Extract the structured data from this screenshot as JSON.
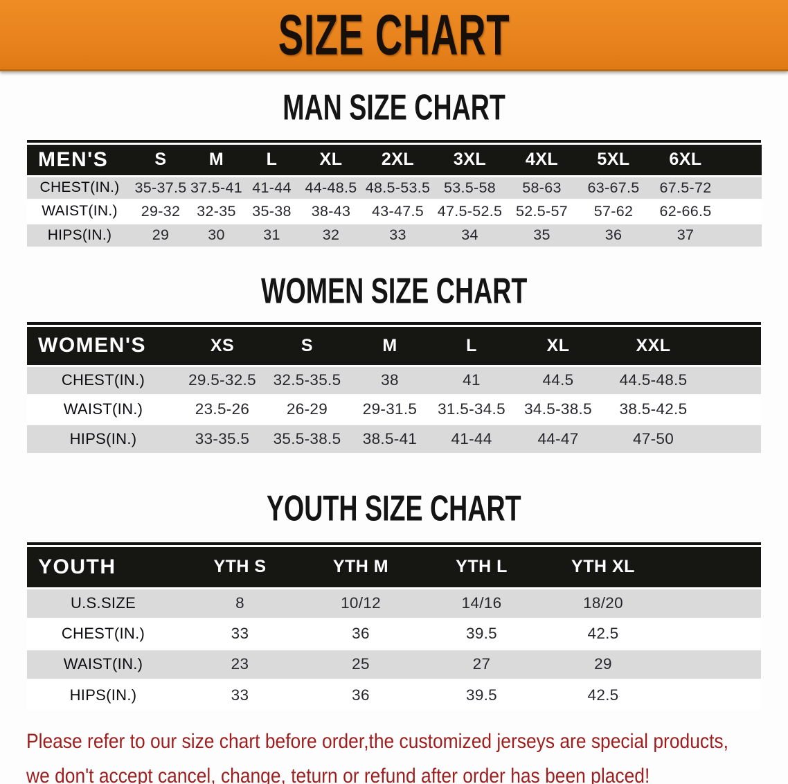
{
  "banner": {
    "title": "SIZE CHART",
    "bg_color": "#e8831d",
    "text_color": "#17100a"
  },
  "sections": [
    {
      "heading": "MAN SIZE CHART",
      "table": {
        "label": "MEN'S",
        "columns": [
          "S",
          "M",
          "L",
          "XL",
          "2XL",
          "3XL",
          "4XL",
          "5XL",
          "6XL"
        ],
        "rows": [
          {
            "label": "CHEST(IN.)",
            "values": [
              "35-37.5",
              "37.5-41",
              "41-44",
              "44-48.5",
              "48.5-53.5",
              "53.5-58",
              "58-63",
              "63-67.5",
              "67.5-72"
            ]
          },
          {
            "label": "WAIST(IN.)",
            "values": [
              "29-32",
              "32-35",
              "35-38",
              "38-43",
              "43-47.5",
              "47.5-52.5",
              "52.5-57",
              "57-62",
              "62-66.5"
            ]
          },
          {
            "label": "HIPS(IN.)",
            "values": [
              "29",
              "30",
              "31",
              "32",
              "33",
              "34",
              "35",
              "36",
              "37"
            ]
          }
        ]
      }
    },
    {
      "heading": "WOMEN SIZE CHART",
      "table": {
        "label": "WOMEN'S",
        "columns": [
          "XS",
          "S",
          "M",
          "L",
          "XL",
          "XXL"
        ],
        "rows": [
          {
            "label": "CHEST(IN.)",
            "values": [
              "29.5-32.5",
              "32.5-35.5",
              "38",
              "41",
              "44.5",
              "44.5-48.5"
            ]
          },
          {
            "label": "WAIST(IN.)",
            "values": [
              "23.5-26",
              "26-29",
              "29-31.5",
              "31.5-34.5",
              "34.5-38.5",
              "38.5-42.5"
            ]
          },
          {
            "label": "HIPS(IN.)",
            "values": [
              "33-35.5",
              "35.5-38.5",
              "38.5-41",
              "41-44",
              "44-47",
              "47-50"
            ]
          }
        ]
      }
    },
    {
      "heading": "YOUTH SIZE CHART",
      "table": {
        "label": "YOUTH",
        "columns": [
          "YTH S",
          "YTH M",
          "YTH L",
          "YTH XL"
        ],
        "rows": [
          {
            "label": "U.S.SIZE",
            "values": [
              "8",
              "10/12",
              "14/16",
              "18/20"
            ]
          },
          {
            "label": "CHEST(IN.)",
            "values": [
              "33",
              "36",
              "39.5",
              "42.5"
            ]
          },
          {
            "label": "WAIST(IN.)",
            "values": [
              "23",
              "25",
              "27",
              "29"
            ]
          },
          {
            "label": "HIPS(IN.)",
            "values": [
              "33",
              "36",
              "39.5",
              "42.5"
            ]
          }
        ]
      }
    }
  ],
  "footer": {
    "line1": "Please refer to our size chart before order,the customized jerseys are special products,",
    "line2": "we don't accept cancel, change, teturn or refund after order has been placed!",
    "text_color": "#9e1d1d"
  }
}
